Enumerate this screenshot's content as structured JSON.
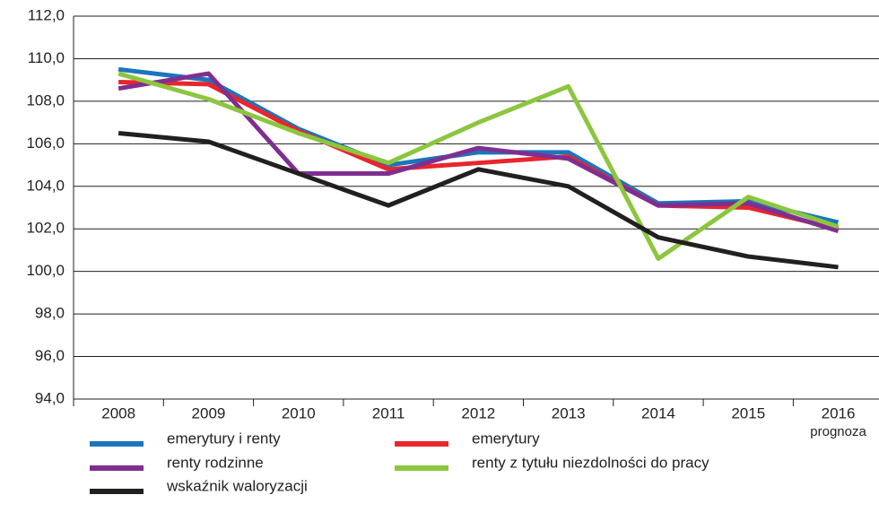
{
  "chart_data": {
    "type": "line",
    "categories": [
      "2008",
      "2009",
      "2010",
      "2011",
      "2012",
      "2013",
      "2014",
      "2015",
      "2016"
    ],
    "x_annotation": "prognoza",
    "series": [
      {
        "name": "emerytury i renty",
        "color": "#1b75bc",
        "values": [
          109.5,
          109.0,
          106.7,
          105.0,
          105.6,
          105.6,
          103.2,
          103.3,
          102.3
        ]
      },
      {
        "name": "emerytury",
        "color": "#e8262c",
        "values": [
          108.9,
          108.8,
          106.6,
          104.8,
          105.1,
          105.4,
          103.1,
          103.0,
          102.0
        ]
      },
      {
        "name": "renty rodzinne",
        "color": "#7f2f8f",
        "values": [
          108.6,
          109.3,
          104.6,
          104.6,
          105.8,
          105.3,
          103.1,
          103.2,
          101.9
        ]
      },
      {
        "name": "renty z tytułu niezdolności do pracy",
        "color": "#8cc63f",
        "values": [
          109.3,
          108.1,
          106.5,
          105.1,
          107.0,
          108.7,
          100.6,
          103.5,
          102.1
        ]
      },
      {
        "name": "wskaźnik waloryzacji",
        "color": "#231f20",
        "values": [
          106.5,
          106.1,
          104.6,
          103.1,
          104.8,
          104.0,
          101.6,
          100.7,
          100.2
        ]
      }
    ],
    "ylim": [
      94,
      112
    ],
    "yticks": [
      {
        "value": 94,
        "label": "94,0"
      },
      {
        "value": 96,
        "label": "96,0"
      },
      {
        "value": 98,
        "label": "98,0"
      },
      {
        "value": 100,
        "label": "100,0"
      },
      {
        "value": 102,
        "label": "102,0"
      },
      {
        "value": 104,
        "label": "104,0"
      },
      {
        "value": 106,
        "label": "106,0"
      },
      {
        "value": 108,
        "label": "108,0"
      },
      {
        "value": 110,
        "label": "110,0"
      },
      {
        "value": 112,
        "label": "112,0"
      }
    ],
    "grid": true
  }
}
